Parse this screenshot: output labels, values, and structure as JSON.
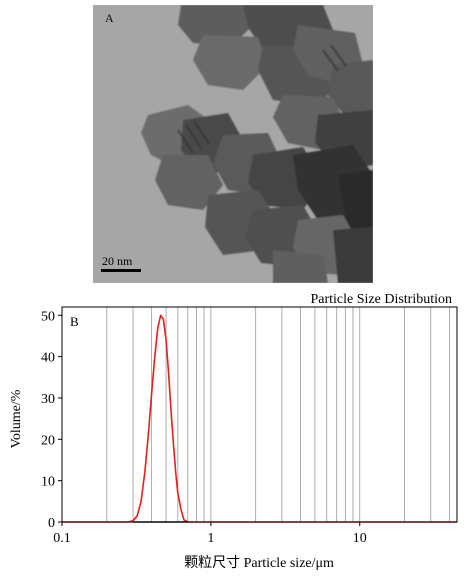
{
  "panel_a": {
    "label": "A",
    "scale_bar_label": "20 nm"
  },
  "chart_data": {
    "type": "line",
    "panel_label": "B",
    "title": "Particle Size Distribution",
    "xlabel": "颗粒尺寸 Particle size/μm",
    "ylabel": "Volume/%",
    "x_scale": "log",
    "xlim": [
      0.1,
      45
    ],
    "ylim": [
      0,
      52
    ],
    "x_tick_labels": [
      "0.1",
      "1",
      "10"
    ],
    "y_tick_labels": [
      "0",
      "10",
      "20",
      "30",
      "40",
      "50"
    ],
    "grid": "vertical log grid lines",
    "series": [
      {
        "color": "#e3201b",
        "x": [
          0.1,
          0.28,
          0.3,
          0.32,
          0.34,
          0.36,
          0.38,
          0.4,
          0.42,
          0.44,
          0.46,
          0.48,
          0.5,
          0.52,
          0.54,
          0.56,
          0.58,
          0.6,
          0.63,
          0.66,
          0.7,
          45
        ],
        "y": [
          0,
          0,
          0.3,
          1.5,
          5,
          12,
          21,
          31,
          40,
          47,
          50,
          49,
          44,
          36,
          27,
          19,
          12,
          7,
          3,
          0.5,
          0,
          0
        ]
      }
    ]
  }
}
